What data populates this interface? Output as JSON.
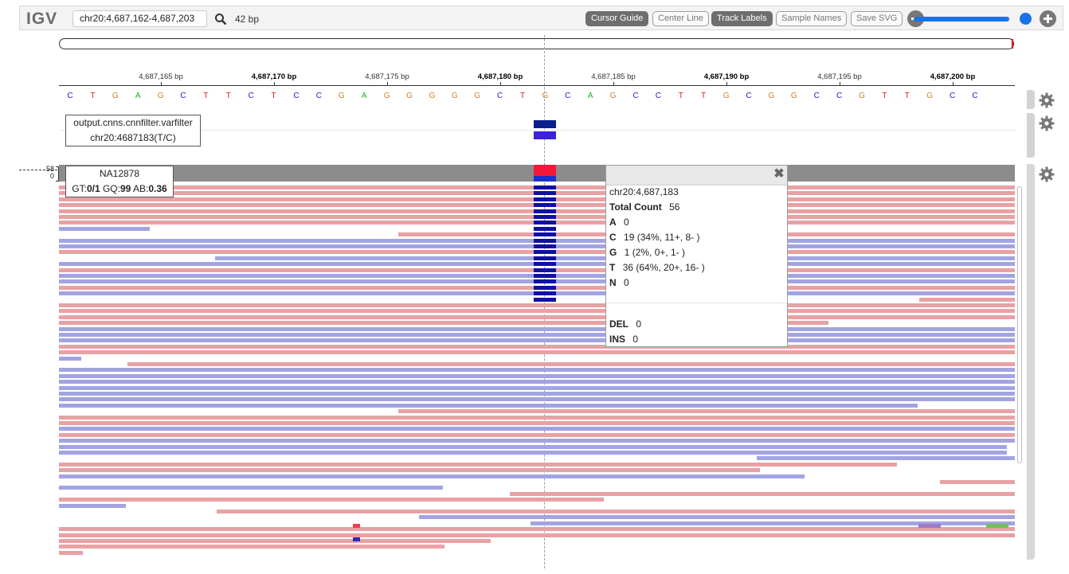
{
  "app": {
    "logo": "IGV"
  },
  "navbar": {
    "locus_value": "chr20:4,687,162-4,687,203",
    "bp_width": "42 bp",
    "buttons": {
      "cursor_guide": "Cursor Guide",
      "center_line": "Center Line",
      "track_labels": "Track Labels",
      "sample_names": "Sample Names",
      "save_svg": "Save SVG"
    },
    "zoom_fraction": 0.93
  },
  "ruler": {
    "ticks": [
      "4,687,165 bp",
      "4,687,170 bp",
      "4,687,175 bp",
      "4,687,180 bp",
      "4,687,185 bp",
      "4,687,190 bp",
      "4,687,195 bp",
      "4,687,200 bp"
    ],
    "bold": [
      false,
      true,
      false,
      true,
      false,
      true,
      false,
      true
    ]
  },
  "sequence": {
    "bases": "CTGAGCTTCTCCGAGGGGGCTGCAGCCTTGCGGCCGTTGCC",
    "colors": {
      "A": "#1bb01b",
      "C": "#1a1ad8",
      "G": "#d1802a",
      "T": "#e01b1b"
    }
  },
  "variant_track": {
    "label_line1": "output.cnns.cnnfilter.varfilter",
    "label_line2": "chr20:4687183(T/C)"
  },
  "alignment_track": {
    "coverage_max": "58",
    "coverage_min": "0",
    "sample": "NA12878",
    "gt_label": "GT:",
    "gt_value": "0/1",
    "gq_label": "GQ:",
    "gq_value": "99",
    "ab_label": "AB:",
    "ab_value": "0.36"
  },
  "popup": {
    "locus": "chr20:4,687,183",
    "total_count_label": "Total Count",
    "total_count": "56",
    "A_label": "A",
    "A_value": "0",
    "C_label": "C",
    "C_value": "19 (34%, 11+, 8- )",
    "G_label": "G",
    "G_value": "1 (2%, 0+, 1- )",
    "T_label": "T",
    "T_value": "36 (64%, 20+, 16- )",
    "N_label": "N",
    "N_value": "0",
    "DEL_label": "DEL",
    "DEL_value": "0",
    "INS_label": "INS",
    "INS_value": "0"
  },
  "icons": [
    "search-icon",
    "zoom-out-icon",
    "zoom-in-icon",
    "gear-icon",
    "close-icon"
  ]
}
